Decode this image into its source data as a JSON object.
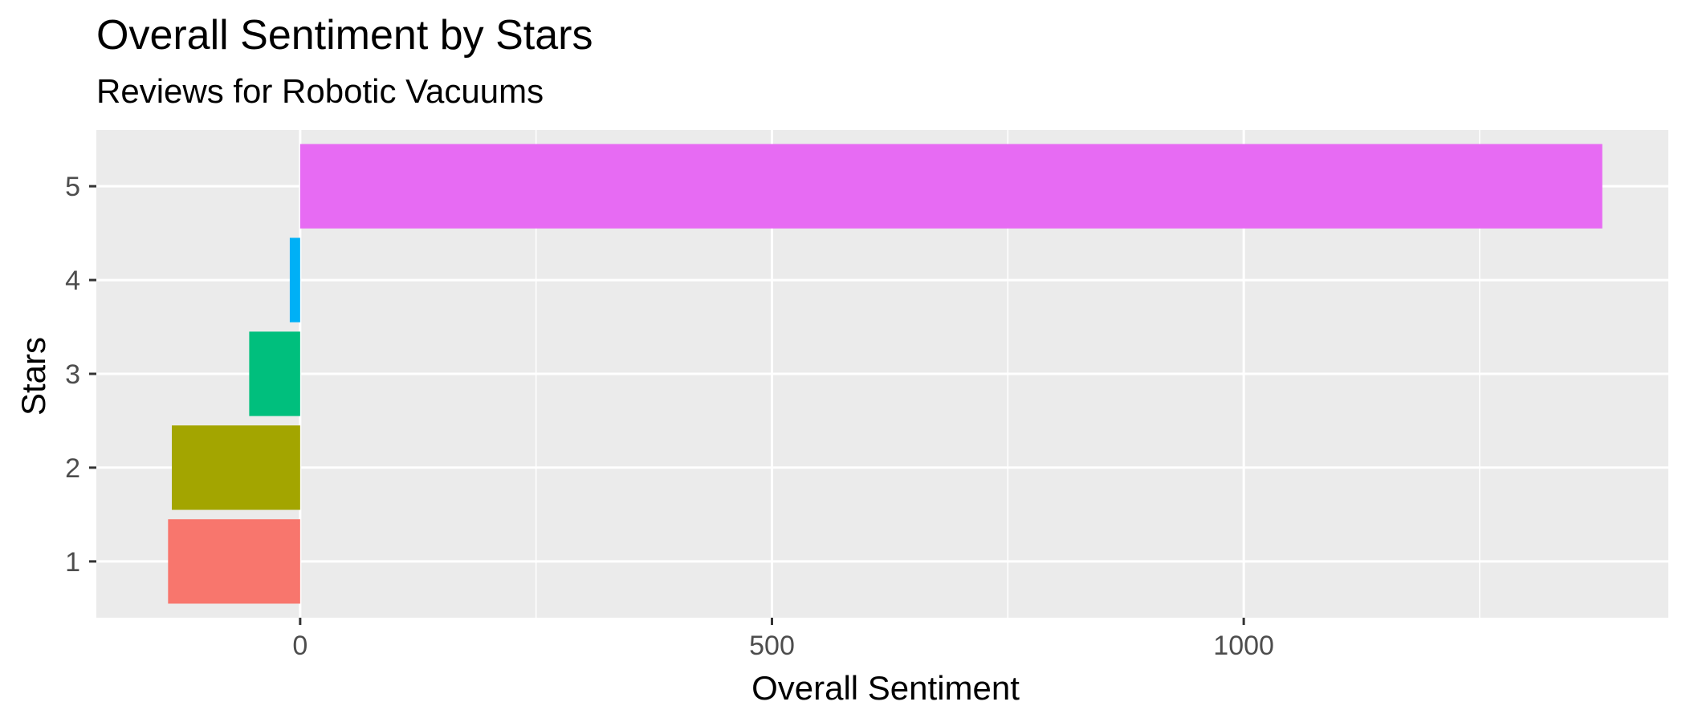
{
  "chart_data": {
    "type": "bar",
    "orientation": "horizontal",
    "title": "Overall Sentiment by Stars",
    "subtitle": "Reviews for Robotic Vacuums",
    "xlabel": "Overall Sentiment",
    "ylabel": "Stars",
    "categories": [
      "1",
      "2",
      "3",
      "4",
      "5"
    ],
    "values": [
      -140,
      -136,
      -54,
      -11,
      1380
    ],
    "colors": [
      "#F8766D",
      "#A3A500",
      "#00BF7D",
      "#00B0F6",
      "#E76BF3"
    ],
    "xlim": [
      -216,
      1450
    ],
    "x_ticks": [
      0,
      500,
      1000
    ],
    "x_tick_labels": [
      "0",
      "500",
      "1000"
    ],
    "x_minor_ticks": [
      250,
      750,
      1250
    ],
    "grid": true,
    "legend": "none",
    "panel_background": "#EBEBEB",
    "grid_color": "#FFFFFF"
  }
}
